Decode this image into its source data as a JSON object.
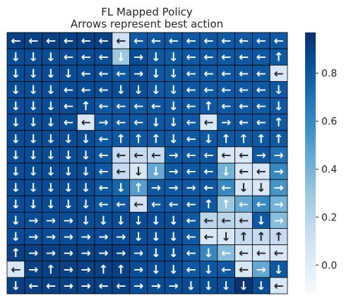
{
  "chart_data": {
    "type": "heatmap",
    "title": "FL Mapped Policy",
    "subtitle": "Arrows represent best action",
    "xlabel": "",
    "ylabel": "",
    "rows": 16,
    "cols": 16,
    "colormap": "Blues",
    "colorbar": {
      "ticks": [
        0.0,
        0.2,
        0.4,
        0.6,
        0.8
      ],
      "tick_labels": [
        "0.0",
        "0.2",
        "0.4",
        "0.6",
        "0.8"
      ],
      "range": [
        -0.12,
        0.97
      ]
    },
    "arrow_legend": {
      "L": "←",
      "R": "→",
      "U": "↑",
      "D": "↓"
    },
    "arrows": [
      [
        "L",
        "L",
        "L",
        "L",
        "L",
        "L",
        "L",
        "L",
        "L",
        "L",
        "L",
        "L",
        "L",
        "L",
        "L",
        "L"
      ],
      [
        "D",
        "D",
        "D",
        "L",
        "L",
        "L",
        "D",
        "R",
        "D",
        "D",
        "L",
        "L",
        "L",
        "L",
        "L",
        "U"
      ],
      [
        "D",
        "D",
        "D",
        "D",
        "L",
        "L",
        "L",
        "R",
        "D",
        "D",
        "L",
        "L",
        "L",
        "L",
        "L",
        "L"
      ],
      [
        "D",
        "D",
        "D",
        "L",
        "L",
        "L",
        "D",
        "D",
        "D",
        "D",
        "L",
        "L",
        "L",
        "L",
        "L",
        "D"
      ],
      [
        "D",
        "D",
        "D",
        "L",
        "U",
        "L",
        "L",
        "L",
        "L",
        "D",
        "L",
        "U",
        "L",
        "L",
        "L",
        "D"
      ],
      [
        "D",
        "D",
        "D",
        "L",
        "L",
        "R",
        "L",
        "L",
        "D",
        "D",
        "L",
        "L",
        "R",
        "L",
        "L",
        "U"
      ],
      [
        "D",
        "D",
        "D",
        "D",
        "D",
        "L",
        "U",
        "U",
        "U",
        "D",
        "L",
        "D",
        "U",
        "U",
        "U",
        "U"
      ],
      [
        "D",
        "D",
        "D",
        "D",
        "D",
        "L",
        "L",
        "L",
        "L",
        "R",
        "L",
        "L",
        "L",
        "L",
        "R",
        "R"
      ],
      [
        "D",
        "D",
        "D",
        "D",
        "D",
        "L",
        "L",
        "D",
        "D",
        "R",
        "L",
        "L",
        "D",
        "L",
        "L",
        "R"
      ],
      [
        "D",
        "D",
        "D",
        "D",
        "D",
        "L",
        "D",
        "U",
        "R",
        "R",
        "R",
        "L",
        "L",
        "D",
        "D",
        "R"
      ],
      [
        "D",
        "D",
        "D",
        "D",
        "D",
        "L",
        "L",
        "L",
        "L",
        "L",
        "L",
        "U",
        "U",
        "L",
        "L",
        "R"
      ],
      [
        "D",
        "R",
        "R",
        "R",
        "D",
        "D",
        "D",
        "D",
        "D",
        "D",
        "L",
        "L",
        "L",
        "L",
        "D",
        "R"
      ],
      [
        "D",
        "R",
        "R",
        "R",
        "R",
        "R",
        "R",
        "D",
        "D",
        "D",
        "L",
        "L",
        "D",
        "U",
        "U",
        "U"
      ],
      [
        "U",
        "R",
        "R",
        "R",
        "R",
        "R",
        "R",
        "R",
        "D",
        "D",
        "L",
        "D",
        "L",
        "L",
        "L",
        "L"
      ],
      [
        "L",
        "R",
        "U",
        "R",
        "R",
        "U",
        "U",
        "R",
        "D",
        "D",
        "L",
        "D",
        "L",
        "L",
        "R",
        "D"
      ],
      [
        "D",
        "L",
        "L",
        "R",
        "R",
        "L",
        "L",
        "R",
        "R",
        "R",
        "D",
        "D",
        "D",
        "D",
        "D",
        "L"
      ]
    ],
    "values": [
      [
        0.9,
        0.9,
        0.9,
        0.9,
        0.9,
        0.9,
        0.1,
        0.8,
        0.8,
        0.8,
        0.8,
        0.8,
        0.8,
        0.8,
        0.8,
        0.8
      ],
      [
        0.85,
        0.85,
        0.85,
        0.85,
        0.85,
        0.85,
        0.3,
        0.85,
        0.8,
        0.8,
        0.8,
        0.8,
        0.8,
        0.8,
        0.8,
        0.8
      ],
      [
        0.85,
        0.85,
        0.85,
        0.85,
        0.85,
        0.85,
        0.8,
        0.85,
        0.8,
        0.8,
        0.8,
        0.8,
        0.8,
        0.8,
        0.8,
        0.05
      ],
      [
        0.85,
        0.85,
        0.85,
        0.85,
        0.85,
        0.85,
        0.85,
        0.85,
        0.8,
        0.8,
        0.8,
        0.8,
        0.8,
        0.8,
        0.8,
        0.8
      ],
      [
        0.85,
        0.85,
        0.85,
        0.85,
        0.85,
        0.8,
        0.8,
        0.8,
        0.8,
        0.8,
        0.8,
        0.8,
        0.8,
        0.8,
        0.8,
        0.8
      ],
      [
        0.85,
        0.85,
        0.85,
        0.85,
        0.05,
        0.8,
        0.8,
        0.8,
        0.8,
        0.8,
        0.8,
        0.05,
        0.8,
        0.8,
        0.8,
        0.8
      ],
      [
        0.85,
        0.85,
        0.85,
        0.85,
        0.85,
        0.8,
        0.8,
        0.8,
        0.8,
        0.8,
        0.8,
        0.8,
        0.8,
        0.8,
        0.8,
        0.8
      ],
      [
        0.85,
        0.85,
        0.85,
        0.85,
        0.85,
        0.8,
        0.15,
        0.15,
        0.15,
        0.8,
        0.8,
        0.8,
        0.05,
        0.05,
        0.8,
        0.7
      ],
      [
        0.85,
        0.85,
        0.85,
        0.85,
        0.85,
        0.8,
        0.15,
        0.05,
        0.45,
        0.8,
        0.8,
        0.8,
        0.4,
        0.05,
        0.05,
        0.6
      ],
      [
        0.85,
        0.85,
        0.85,
        0.85,
        0.85,
        0.8,
        0.75,
        0.5,
        0.8,
        0.8,
        0.8,
        0.8,
        0.6,
        0.05,
        0.05,
        0.55
      ],
      [
        0.85,
        0.85,
        0.85,
        0.85,
        0.85,
        0.8,
        0.8,
        0.1,
        0.8,
        0.8,
        0.8,
        0.8,
        0.3,
        0.45,
        0.6,
        0.4
      ],
      [
        0.85,
        0.85,
        0.85,
        0.85,
        0.85,
        0.85,
        0.85,
        0.85,
        0.85,
        0.85,
        0.8,
        0.2,
        0.2,
        0.15,
        0.8,
        0.35
      ],
      [
        0.85,
        0.85,
        0.85,
        0.85,
        0.85,
        0.85,
        0.85,
        0.85,
        0.85,
        0.85,
        0.8,
        0.05,
        0.05,
        0.15,
        0.15,
        0.15
      ],
      [
        0.9,
        0.9,
        0.9,
        0.9,
        0.9,
        0.9,
        0.9,
        0.85,
        0.85,
        0.85,
        0.8,
        0.6,
        0.35,
        0.05,
        0.05,
        0.05
      ],
      [
        0.05,
        0.9,
        0.9,
        0.9,
        0.9,
        0.9,
        0.9,
        0.85,
        0.85,
        0.85,
        0.8,
        0.8,
        0.8,
        0.05,
        0.45,
        0.8
      ],
      [
        0.9,
        0.9,
        0.9,
        0.9,
        0.9,
        0.9,
        0.9,
        0.85,
        0.85,
        0.85,
        0.85,
        0.85,
        0.85,
        0.95,
        0.85,
        0.05
      ]
    ]
  }
}
